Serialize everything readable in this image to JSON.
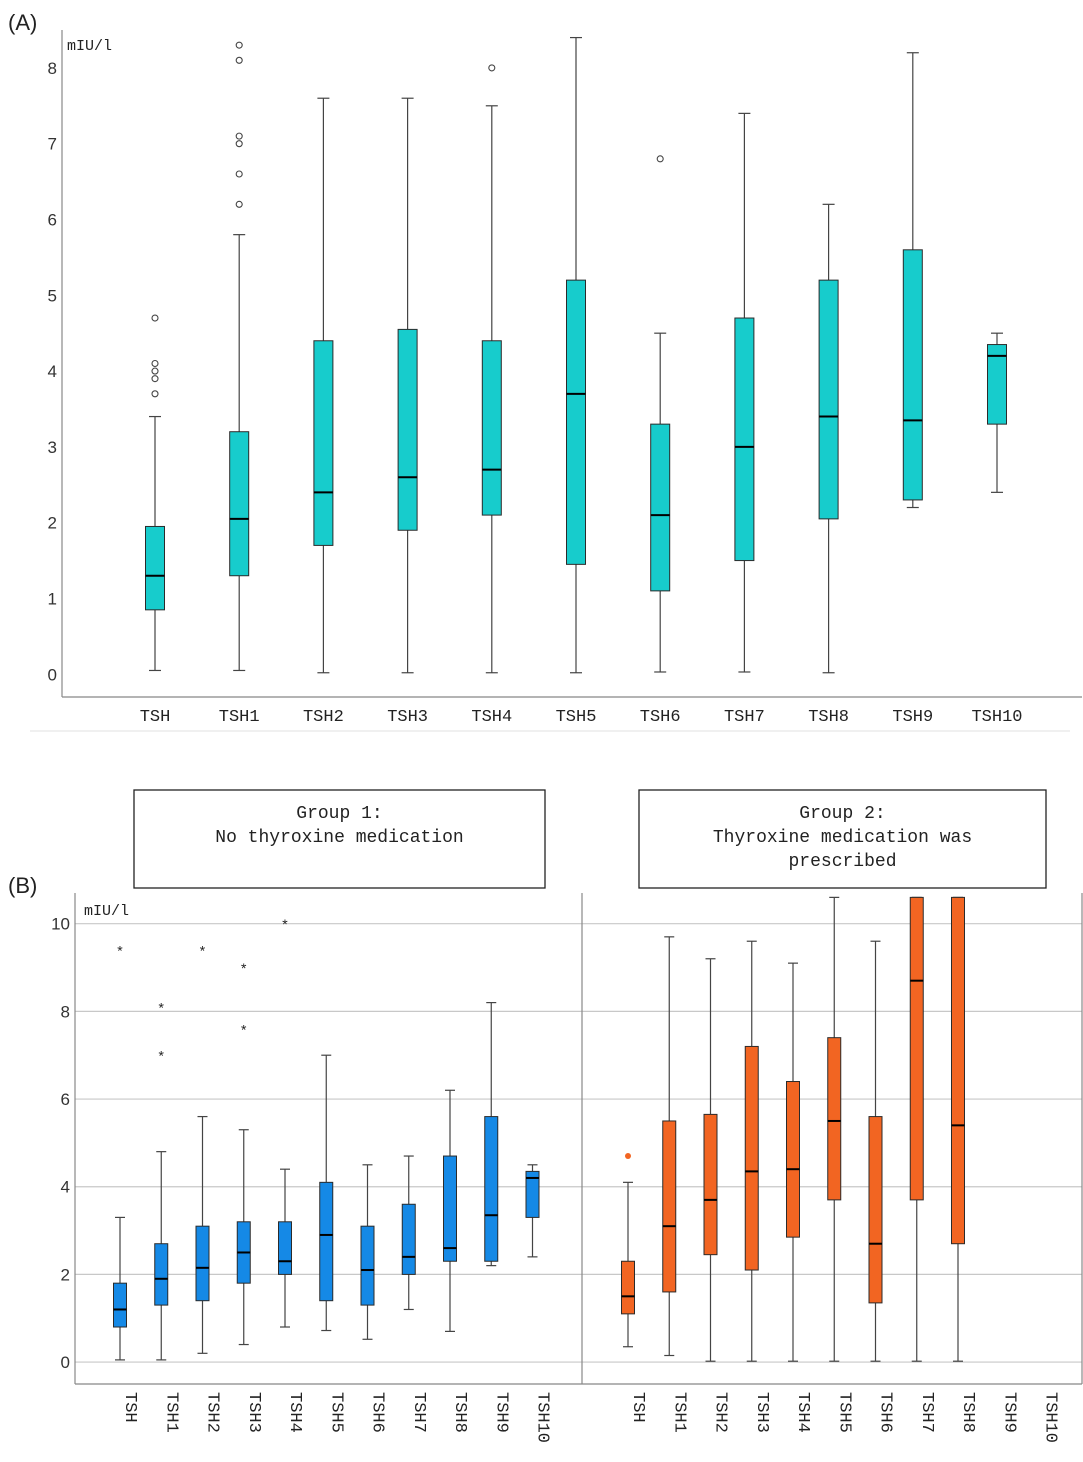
{
  "panels": {
    "a_label": "(A)",
    "b_label": "(B)"
  },
  "groups": {
    "g1_line1": "Group 1:",
    "g1_line2": "No thyroxine medication",
    "g2_line1": "Group 2:",
    "g2_line2": "Thyroxine medication was",
    "g2_line3": "prescribed"
  },
  "colors": {
    "panel_a": "#17CCCC",
    "group1": "#1589E6",
    "group2": "#F26522",
    "median": "#000000",
    "grid": "#C8C8C8",
    "axis": "#888888"
  },
  "chart_data": [
    {
      "id": "A",
      "type": "box",
      "ylabel": "mIU/l",
      "ylim": [
        -0.3,
        8.5
      ],
      "yticks": [
        0,
        1,
        2,
        3,
        4,
        5,
        6,
        7,
        8
      ],
      "grid": false,
      "color": "#17CCCC",
      "categories": [
        "TSH",
        "TSH1",
        "TSH2",
        "TSH3",
        "TSH4",
        "TSH5",
        "TSH6",
        "TSH7",
        "TSH8",
        "TSH9",
        "TSH10"
      ],
      "boxes": [
        {
          "min": 0.05,
          "q1": 0.85,
          "median": 1.3,
          "q3": 1.95,
          "max": 3.4,
          "outliers": [
            3.7,
            3.9,
            4.0,
            4.1,
            4.7
          ]
        },
        {
          "min": 0.05,
          "q1": 1.3,
          "median": 2.05,
          "q3": 3.2,
          "max": 5.8,
          "outliers": [
            6.2,
            6.6,
            7.0,
            7.1,
            8.1,
            8.3
          ]
        },
        {
          "min": 0.02,
          "q1": 1.7,
          "median": 2.4,
          "q3": 4.4,
          "max": 7.6,
          "outliers": []
        },
        {
          "min": 0.02,
          "q1": 1.9,
          "median": 2.6,
          "q3": 4.55,
          "max": 7.6,
          "outliers": []
        },
        {
          "min": 0.02,
          "q1": 2.1,
          "median": 2.7,
          "q3": 4.4,
          "max": 7.5,
          "outliers": [
            8.0
          ]
        },
        {
          "min": 0.02,
          "q1": 1.45,
          "median": 3.7,
          "q3": 5.2,
          "max": 8.4,
          "outliers": []
        },
        {
          "min": 0.03,
          "q1": 1.1,
          "median": 2.1,
          "q3": 3.3,
          "max": 4.5,
          "outliers": [
            6.8
          ]
        },
        {
          "min": 0.03,
          "q1": 1.5,
          "median": 3.0,
          "q3": 4.7,
          "max": 7.4,
          "outliers": []
        },
        {
          "min": 0.02,
          "q1": 2.05,
          "median": 3.4,
          "q3": 5.2,
          "max": 6.2,
          "outliers": []
        },
        {
          "min": 2.2,
          "q1": 2.3,
          "median": 3.35,
          "q3": 5.6,
          "max": 8.2,
          "outliers": []
        },
        {
          "min": 2.4,
          "q1": 3.3,
          "median": 4.2,
          "q3": 4.35,
          "max": 4.5,
          "outliers": []
        }
      ]
    },
    {
      "id": "B1",
      "type": "box",
      "ylabel": "mIU/l",
      "ylim": [
        -0.5,
        10.7
      ],
      "yticks": [
        0,
        2,
        4,
        6,
        8,
        10
      ],
      "grid": true,
      "color": "#1589E6",
      "categories": [
        "TSH",
        "TSH1",
        "TSH2",
        "TSH3",
        "TSH4",
        "TSH5",
        "TSH6",
        "TSH7",
        "TSH8",
        "TSH9",
        "TSH10"
      ],
      "boxes": [
        {
          "min": 0.05,
          "q1": 0.8,
          "median": 1.2,
          "q3": 1.8,
          "max": 3.3,
          "outliers": [
            9.4
          ]
        },
        {
          "min": 0.05,
          "q1": 1.3,
          "median": 1.9,
          "q3": 2.7,
          "max": 4.8,
          "outliers": [
            7.0,
            8.1
          ]
        },
        {
          "min": 0.2,
          "q1": 1.4,
          "median": 2.15,
          "q3": 3.1,
          "max": 5.6,
          "outliers": [
            9.4
          ]
        },
        {
          "min": 0.4,
          "q1": 1.8,
          "median": 2.5,
          "q3": 3.2,
          "max": 5.3,
          "outliers": [
            7.6,
            9.0
          ]
        },
        {
          "min": 0.8,
          "q1": 2.0,
          "median": 2.3,
          "q3": 3.2,
          "max": 4.4,
          "outliers": [
            10.0
          ]
        },
        {
          "min": 0.72,
          "q1": 1.4,
          "median": 2.9,
          "q3": 4.1,
          "max": 7.0,
          "outliers": []
        },
        {
          "min": 0.52,
          "q1": 1.3,
          "median": 2.1,
          "q3": 3.1,
          "max": 4.5,
          "outliers": []
        },
        {
          "min": 1.2,
          "q1": 2.0,
          "median": 2.4,
          "q3": 3.6,
          "max": 4.7,
          "outliers": []
        },
        {
          "min": 0.7,
          "q1": 2.3,
          "median": 2.6,
          "q3": 4.7,
          "max": 6.2,
          "outliers": []
        },
        {
          "min": 2.2,
          "q1": 2.3,
          "median": 3.35,
          "q3": 5.6,
          "max": 8.2,
          "outliers": []
        },
        {
          "min": 2.4,
          "q1": 3.3,
          "median": 4.2,
          "q3": 4.35,
          "max": 4.5,
          "outliers": []
        }
      ]
    },
    {
      "id": "B2",
      "type": "box",
      "ylim": [
        -0.5,
        10.7
      ],
      "yticks": [
        0,
        2,
        4,
        6,
        8,
        10
      ],
      "grid": true,
      "color": "#F26522",
      "categories": [
        "TSH",
        "TSH1",
        "TSH2",
        "TSH3",
        "TSH4",
        "TSH5",
        "TSH6",
        "TSH7",
        "TSH8",
        "TSH9",
        "TSH10"
      ],
      "boxes": [
        {
          "min": 0.35,
          "q1": 1.1,
          "median": 1.5,
          "q3": 2.3,
          "max": 4.1,
          "outliers": [
            4.7
          ]
        },
        {
          "min": 0.15,
          "q1": 1.6,
          "median": 3.1,
          "q3": 5.5,
          "max": 9.7,
          "outliers": []
        },
        {
          "min": 0.02,
          "q1": 2.45,
          "median": 3.7,
          "q3": 5.65,
          "max": 9.2,
          "outliers": []
        },
        {
          "min": 0.02,
          "q1": 2.1,
          "median": 4.35,
          "q3": 7.2,
          "max": 9.6,
          "outliers": []
        },
        {
          "min": 0.02,
          "q1": 2.85,
          "median": 4.4,
          "q3": 6.4,
          "max": 9.1,
          "outliers": []
        },
        {
          "min": 0.02,
          "q1": 3.7,
          "median": 5.5,
          "q3": 7.4,
          "max": 10.6,
          "outliers": []
        },
        {
          "min": 0.02,
          "q1": 1.35,
          "median": 2.7,
          "q3": 5.6,
          "max": 9.6,
          "outliers": []
        },
        {
          "min": 0.02,
          "q1": 3.7,
          "median": 8.7,
          "q3": 10.6,
          "max": 10.6,
          "outliers": []
        },
        {
          "min": 0.02,
          "q1": 2.7,
          "median": 5.4,
          "q3": 10.6,
          "max": 10.6,
          "outliers": []
        },
        null,
        null
      ]
    }
  ]
}
